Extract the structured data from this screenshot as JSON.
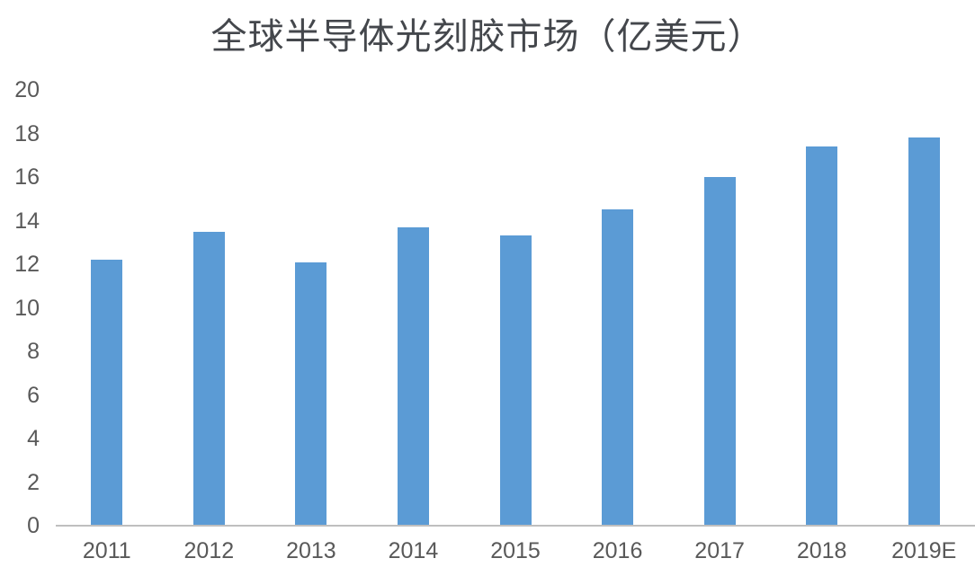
{
  "chart_data": {
    "type": "bar",
    "title": "全球半导体光刻胶市场（亿美元）",
    "categories": [
      "2011",
      "2012",
      "2013",
      "2014",
      "2015",
      "2016",
      "2017",
      "2018",
      "2019E"
    ],
    "values": [
      12.2,
      13.5,
      12.1,
      13.7,
      13.3,
      14.5,
      16.0,
      17.4,
      17.8
    ],
    "xlabel": "",
    "ylabel": "",
    "ylim": [
      0,
      20
    ],
    "ytick_step": 2,
    "ytick_labels": [
      "0",
      "2",
      "4",
      "6",
      "8",
      "10",
      "12",
      "14",
      "16",
      "18",
      "20"
    ],
    "grid": "off",
    "legend_position": "none",
    "colors": {
      "bar": "#5b9bd5",
      "axis_line": "#bfbfbf",
      "tick_label": "#595959",
      "title": "#44474c",
      "background": "#ffffff"
    }
  }
}
